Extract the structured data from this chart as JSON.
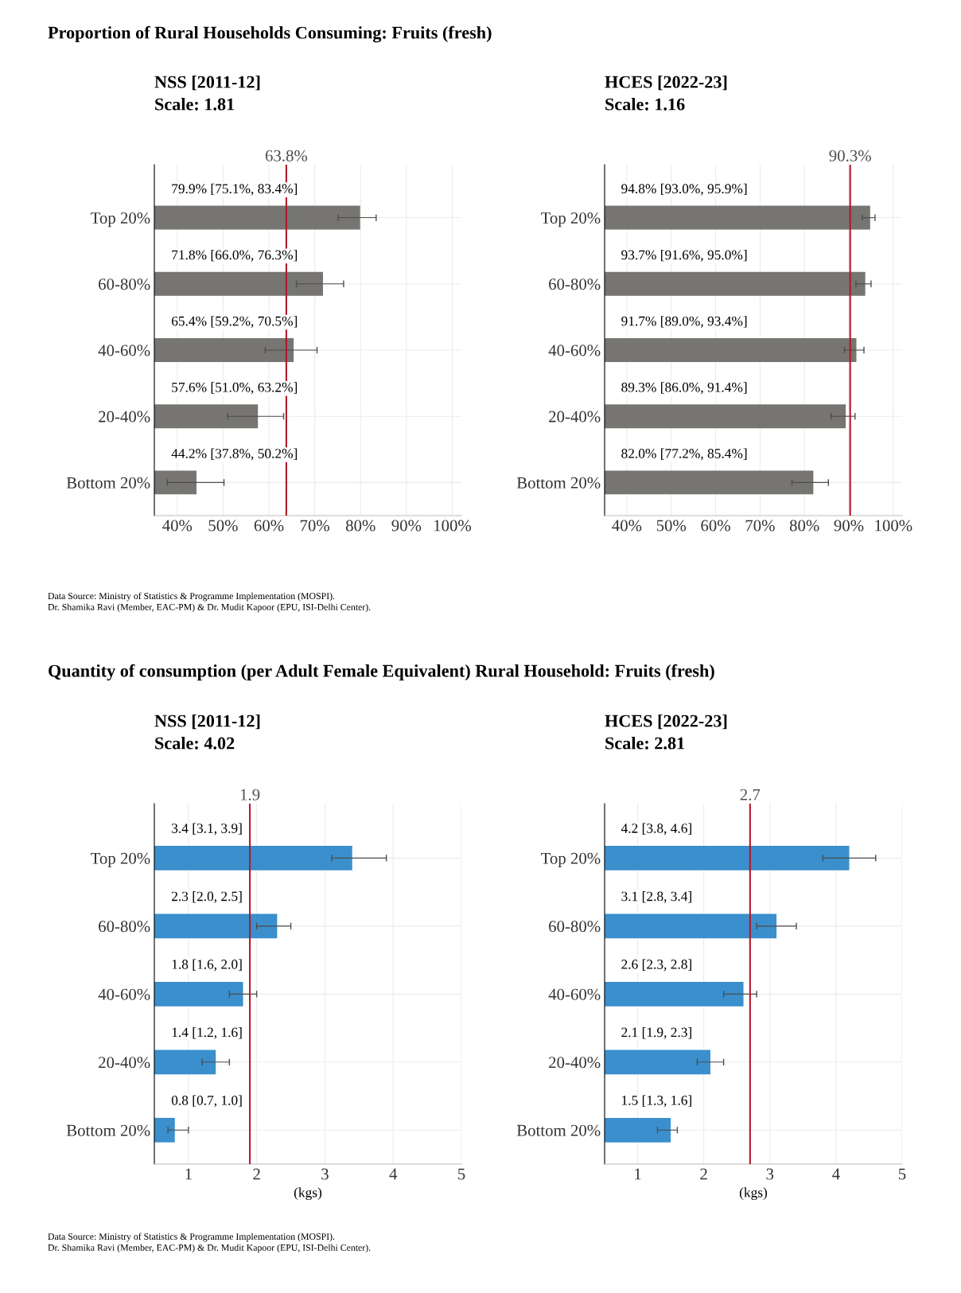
{
  "chart_data": [
    {
      "type": "bar",
      "orientation": "horizontal",
      "title": "NSS [2011-12]",
      "subtitle": "Scale: 1.81",
      "categories": [
        "Top 20%",
        "60-80%",
        "40-60%",
        "20-40%",
        "Bottom 20%"
      ],
      "values": [
        79.9,
        71.8,
        65.4,
        57.6,
        44.2
      ],
      "color": "#767571",
      "errors": [
        [
          75.1,
          83.4
        ],
        [
          66.0,
          76.3
        ],
        [
          59.2,
          70.5
        ],
        [
          51.0,
          63.2
        ],
        [
          37.8,
          50.2
        ]
      ],
      "value_labels": [
        "79.9% [75.1%, 83.4%]",
        "71.8% [66.0%, 76.3%]",
        "65.4% [59.2%, 70.5%]",
        "57.6% [51.0%, 63.2%]",
        "44.2% [37.8%, 50.2%]"
      ],
      "xlim": [
        35,
        102
      ],
      "xticks": [
        {
          "value": 40,
          "label": "40%"
        },
        {
          "value": 50,
          "label": "50%"
        },
        {
          "value": 60,
          "label": "60%"
        },
        {
          "value": 70,
          "label": "70%"
        },
        {
          "value": 80,
          "label": "80%"
        },
        {
          "value": 90,
          "label": "90%"
        },
        {
          "value": 100,
          "label": "100%"
        }
      ],
      "ref_lines": [
        {
          "axis": "x",
          "value": 63.8,
          "label": "63.8%",
          "color": "#b2182b"
        }
      ],
      "grid": true,
      "annotations": [
        "Proportion of Rural Households Consuming: Fruits (fresh)",
        "Data Source: Ministry of Statistics & Programme Implementation (MOSPI).",
        "Dr. Shamika Ravi (Member, EAC-PM) & Dr. Mudit Kapoor (EPU, ISI-Delhi Center)."
      ]
    },
    {
      "type": "bar",
      "orientation": "horizontal",
      "title": "HCES [2022-23]",
      "subtitle": "Scale: 1.16",
      "categories": [
        "Top 20%",
        "60-80%",
        "40-60%",
        "20-40%",
        "Bottom 20%"
      ],
      "values": [
        94.8,
        93.7,
        91.7,
        89.3,
        82.0
      ],
      "color": "#767571",
      "errors": [
        [
          93.0,
          95.9
        ],
        [
          91.6,
          95.0
        ],
        [
          89.0,
          93.4
        ],
        [
          86.0,
          91.4
        ],
        [
          77.2,
          85.4
        ]
      ],
      "value_labels": [
        "94.8% [93.0%, 95.9%]",
        "93.7% [91.6%, 95.0%]",
        "91.7% [89.0%, 93.4%]",
        "89.3% [86.0%, 91.4%]",
        "82.0% [77.2%, 85.4%]"
      ],
      "xlim": [
        35,
        102
      ],
      "xticks": [
        {
          "value": 40,
          "label": "40%"
        },
        {
          "value": 50,
          "label": "50%"
        },
        {
          "value": 60,
          "label": "60%"
        },
        {
          "value": 70,
          "label": "70%"
        },
        {
          "value": 80,
          "label": "80%"
        },
        {
          "value": 90,
          "label": "90%"
        },
        {
          "value": 100,
          "label": "100%"
        }
      ],
      "ref_lines": [
        {
          "axis": "x",
          "value": 90.3,
          "label": "90.3%",
          "color": "#b2182b"
        }
      ],
      "grid": true
    },
    {
      "type": "bar",
      "orientation": "horizontal",
      "title": "NSS [2011-12]",
      "subtitle": "Scale: 4.02",
      "xlabel": "(kgs)",
      "categories": [
        "Top 20%",
        "60-80%",
        "40-60%",
        "20-40%",
        "Bottom 20%"
      ],
      "values": [
        3.4,
        2.3,
        1.8,
        1.4,
        0.8
      ],
      "color": "#3a8fcc",
      "errors": [
        [
          3.1,
          3.9
        ],
        [
          2.0,
          2.5
        ],
        [
          1.6,
          2.0
        ],
        [
          1.2,
          1.6
        ],
        [
          0.7,
          1.0
        ]
      ],
      "value_labels": [
        "3.4 [3.1, 3.9]",
        "2.3 [2.0, 2.5]",
        "1.8 [1.6, 2.0]",
        "1.4 [1.2, 1.6]",
        "0.8 [0.7, 1.0]"
      ],
      "xlim": [
        0.5,
        5.0
      ],
      "xticks": [
        1,
        2,
        3,
        4,
        5
      ],
      "ref_lines": [
        {
          "axis": "x",
          "value": 1.9,
          "label": "1.9",
          "color": "#b2182b"
        }
      ],
      "grid": true,
      "annotations": [
        "Quantity of consumption (per Adult Female Equivalent) Rural Household: Fruits (fresh)",
        "Data Source: Ministry of Statistics & Programme Implementation (MOSPI).",
        "Dr. Shamika Ravi (Member, EAC-PM) & Dr. Mudit Kapoor (EPU, ISI-Delhi Center)."
      ]
    },
    {
      "type": "bar",
      "orientation": "horizontal",
      "title": "HCES [2022-23]",
      "subtitle": "Scale: 2.81",
      "xlabel": "(kgs)",
      "categories": [
        "Top 20%",
        "60-80%",
        "40-60%",
        "20-40%",
        "Bottom 20%"
      ],
      "values": [
        4.2,
        3.1,
        2.6,
        2.1,
        1.5
      ],
      "color": "#3a8fcc",
      "errors": [
        [
          3.8,
          4.6
        ],
        [
          2.8,
          3.4
        ],
        [
          2.3,
          2.8
        ],
        [
          1.9,
          2.3
        ],
        [
          1.3,
          1.6
        ]
      ],
      "value_labels": [
        "4.2 [3.8, 4.6]",
        "3.1 [2.8, 3.4]",
        "2.6 [2.3, 2.8]",
        "2.1 [1.9, 2.3]",
        "1.5 [1.3, 1.6]"
      ],
      "xlim": [
        0.5,
        5.0
      ],
      "xticks": [
        1,
        2,
        3,
        4,
        5
      ],
      "ref_lines": [
        {
          "axis": "x",
          "value": 2.7,
          "label": "2.7",
          "color": "#b2182b"
        }
      ],
      "grid": true
    }
  ]
}
